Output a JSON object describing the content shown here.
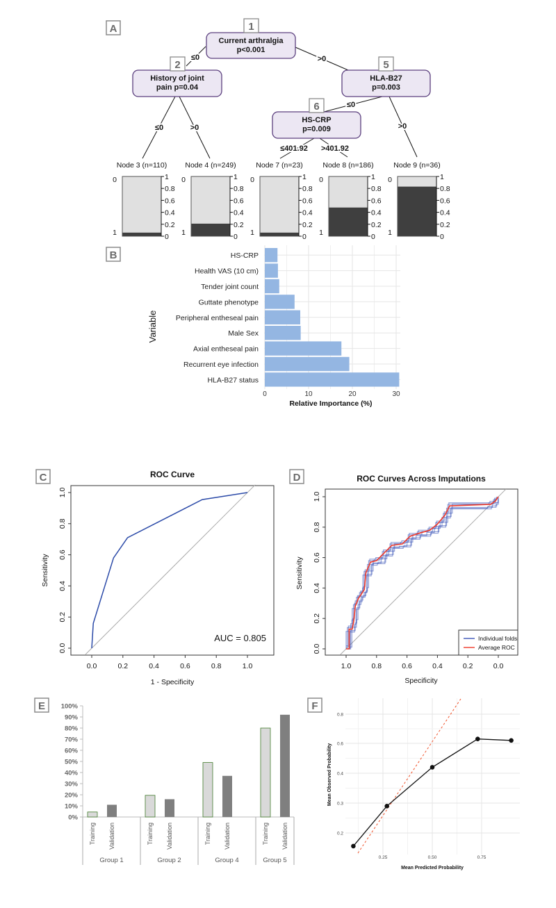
{
  "panel_labels": [
    "A",
    "B",
    "C",
    "D",
    "E",
    "F"
  ],
  "colors": {
    "tree_node_fill": "#ece7f3",
    "tree_node_border": "#5b3f7e",
    "terminal_light": "#e0e0e0",
    "terminal_dark": "#3f3f3f",
    "importance_bar": "#94b6e2",
    "roc_line": "#2b4aa8",
    "fold_line": "#3d55b8",
    "average_line": "#f03a2a",
    "training_fill": "#d9d9d9",
    "training_border": "#3f7a2a",
    "validation_fill": "#7f7f7f",
    "reference_dashed": "#f0522a"
  },
  "chart_data": [
    {
      "type": "tree",
      "panel": "A",
      "inner_nodes": [
        {
          "id": "1",
          "lines": [
            "Current arthralgia",
            "p<0.001"
          ]
        },
        {
          "id": "2",
          "lines": [
            "History of joint",
            "pain p=0.04"
          ]
        },
        {
          "id": "5",
          "lines": [
            "HLA-B27",
            "p=0.003"
          ]
        },
        {
          "id": "6",
          "lines": [
            "HS-CRP",
            "p=0.009"
          ]
        }
      ],
      "edges": [
        {
          "from": "1",
          "to": "2",
          "label": "≤0"
        },
        {
          "from": "1",
          "to": "5",
          "label": ">0"
        },
        {
          "from": "2",
          "to": "3",
          "label": "≤0"
        },
        {
          "from": "2",
          "to": "4",
          "label": ">0"
        },
        {
          "from": "5",
          "to": "6",
          "label": "≤0"
        },
        {
          "from": "5",
          "to": "9",
          "label": ">0"
        },
        {
          "from": "6",
          "to": "7",
          "label": "≤401.92"
        },
        {
          "from": "6",
          "to": "8",
          "label": ">401.92"
        }
      ],
      "terminal_nodes": [
        {
          "label": "Node 3 (n=110)",
          "fraction_1": 0.06
        },
        {
          "label": "Node 4 (n=249)",
          "fraction_1": 0.21
        },
        {
          "label": "Node 7 (n=23)",
          "fraction_1": 0.06
        },
        {
          "label": "Node 8 (n=186)",
          "fraction_1": 0.48
        },
        {
          "label": "Node 9 (n=36)",
          "fraction_1": 0.83
        }
      ],
      "class_labels": [
        "0",
        "1"
      ],
      "axis_ticks": [
        "0",
        "0.2",
        "0.4",
        "0.6",
        "0.8",
        "1"
      ]
    },
    {
      "type": "bar",
      "panel": "B",
      "orientation": "horizontal",
      "categories": [
        "HS-CRP",
        "Health VAS (10 cm)",
        "Tender joint count",
        "Guttate phenotype",
        "Peripheral entheseal pain",
        "Male Sex",
        "Axial entheseal pain",
        "Recurrent eye infection",
        "HLA-B27 status"
      ],
      "values": [
        2.9,
        3.0,
        3.3,
        6.8,
        8.1,
        8.2,
        17.5,
        19.3,
        30.7
      ],
      "xlabel": "Relative Importance (%)",
      "ylabel": "Variable",
      "xlim": [
        0,
        31
      ],
      "xticks": [
        "0",
        "10",
        "20",
        "30"
      ],
      "grid": true
    },
    {
      "type": "line",
      "panel": "C",
      "title": "ROC Curve",
      "xlabel": "1 - Specificity",
      "ylabel": "Sensitivity",
      "xticks": [
        "0.0",
        "0.2",
        "0.4",
        "0.6",
        "0.8",
        "1.0"
      ],
      "yticks": [
        "0.0",
        "0.2",
        "0.4",
        "0.6",
        "0.8",
        "1.0"
      ],
      "x": [
        0,
        0.01,
        0.14,
        0.23,
        0.71,
        1.0
      ],
      "y": [
        0,
        0.16,
        0.58,
        0.71,
        0.955,
        1.0
      ],
      "annotation": "AUC = 0.805",
      "diagonal": true
    },
    {
      "type": "line",
      "panel": "D",
      "title": "ROC Curves Across Imputations",
      "xlabel": "Specificity",
      "ylabel": "Sensitivity",
      "xticks": [
        "1.0",
        "0.8",
        "0.6",
        "0.4",
        "0.2",
        "0.0"
      ],
      "yticks": [
        "0.0",
        "0.2",
        "0.4",
        "0.6",
        "0.8",
        "1.0"
      ],
      "x_reversed": true,
      "legend": {
        "position": "bottom-right",
        "entries": [
          "Individual folds",
          "Average ROC"
        ]
      },
      "series": [
        {
          "name": "Average ROC",
          "x": [
            1.0,
            0.98,
            0.98,
            0.96,
            0.95,
            0.94,
            0.92,
            0.9,
            0.88,
            0.87,
            0.84,
            0.8,
            0.75,
            0.7,
            0.63,
            0.58,
            0.52,
            0.45,
            0.4,
            0.35,
            0.32,
            0.05,
            0.02,
            0.0
          ],
          "y": [
            0.0,
            0.0,
            0.13,
            0.13,
            0.18,
            0.28,
            0.33,
            0.36,
            0.39,
            0.5,
            0.57,
            0.58,
            0.63,
            0.68,
            0.69,
            0.74,
            0.76,
            0.78,
            0.82,
            0.88,
            0.94,
            0.95,
            0.97,
            1.0
          ]
        }
      ],
      "diagonal": true
    },
    {
      "type": "bar",
      "panel": "E",
      "categories": [
        "Group 1",
        "Group 2",
        "Group 4",
        "Group 5"
      ],
      "subcategories": [
        "Training",
        "Validation"
      ],
      "series": [
        {
          "name": "Training",
          "values": [
            4.5,
            19.5,
            49,
            80
          ]
        },
        {
          "name": "Validation",
          "values": [
            11,
            16,
            37,
            92
          ]
        }
      ],
      "yticks": [
        "0%",
        "10%",
        "20%",
        "30%",
        "40%",
        "50%",
        "60%",
        "70%",
        "80%",
        "90%",
        "100%"
      ],
      "ylim": [
        0,
        100
      ]
    },
    {
      "type": "line",
      "panel": "F",
      "xlabel": "Mean Predicted Probability",
      "ylabel": "Mean Observed Probability",
      "xticks": [
        "0.25",
        "0.50",
        "0.75"
      ],
      "yticks": [
        "0.2",
        "0.3",
        "0.4",
        "0.6",
        "0.8"
      ],
      "x": [
        0.1,
        0.27,
        0.5,
        0.73,
        0.9
      ],
      "y": [
        0.156,
        0.29,
        0.44,
        0.63,
        0.62
      ],
      "reference_line": "dashed",
      "grid": true
    }
  ]
}
